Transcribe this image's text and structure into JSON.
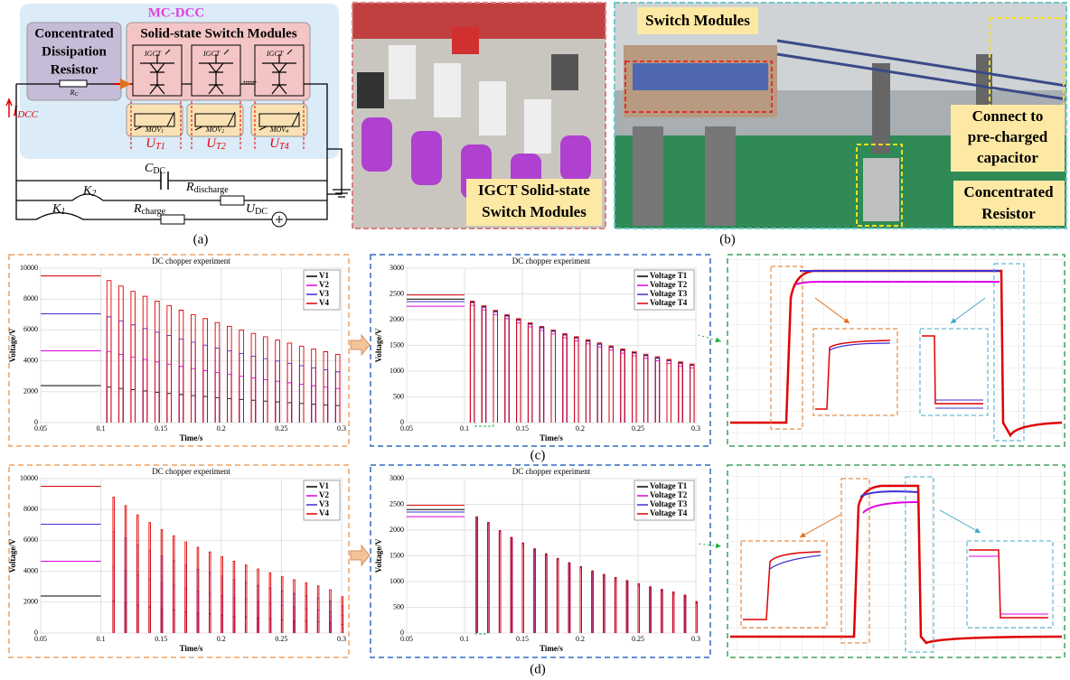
{
  "captions": [
    "(a)",
    "(b)",
    "(c)",
    "(d)"
  ],
  "panel_a": {
    "mc_dcc": "MC-DCC",
    "resistor_title": [
      "Concentrated",
      "Dissipation",
      "Resistor"
    ],
    "switch_title": "Solid-state Switch Modules",
    "igct": [
      "IGCT",
      "IGCT",
      "IGCT"
    ],
    "dots": "......",
    "rc": {
      "main": "R",
      "sub": "C"
    },
    "idcc": {
      "main": "I",
      "sub": "DCC"
    },
    "movs": [
      {
        "main": "MOV",
        "sub": "1"
      },
      {
        "main": "MOV",
        "sub": "2"
      },
      {
        "main": "MOV",
        "sub": "4"
      }
    ],
    "uts": [
      {
        "main": "U",
        "sub": "T1"
      },
      {
        "main": "U",
        "sub": "T2"
      },
      {
        "main": "U",
        "sub": "T4"
      }
    ],
    "cdc": {
      "main": "C",
      "sub": "DC"
    },
    "k2": {
      "main": "K",
      "sub": "2"
    },
    "rdis": {
      "main": "R",
      "sub": "discharge"
    },
    "k1": {
      "main": "K",
      "sub": "1"
    },
    "rch": {
      "main": "R",
      "sub": "charge"
    },
    "udc": {
      "main": "U",
      "sub": "DC"
    }
  },
  "panel_b": {
    "igct_label": [
      "IGCT Solid-state",
      "Switch Modules"
    ],
    "switch_modules": "Switch Modules",
    "connect": [
      "Connect to",
      "pre-charged",
      "capacitor"
    ],
    "resistor": [
      "Concentrated",
      "Resistor"
    ]
  },
  "chart_data": [
    {
      "type": "line",
      "title": "DC chopper experiment",
      "x_label": "Time/s",
      "y_label": "Voltage/V",
      "x": [
        0.05,
        0.1,
        0.105,
        0.115,
        0.125,
        0.135,
        0.145,
        0.155,
        0.165,
        0.175,
        0.185,
        0.195,
        0.205,
        0.215,
        0.225,
        0.235,
        0.245,
        0.255,
        0.265,
        0.275,
        0.285,
        0.295
      ],
      "xlim": [
        0.05,
        0.3
      ],
      "xticks": [
        0.05,
        0.1,
        0.15,
        0.2,
        0.25,
        0.3
      ],
      "ylim": [
        0,
        10000
      ],
      "yticks": [
        0,
        2000,
        4000,
        6000,
        8000,
        10000
      ],
      "grid": true,
      "legend": "upper right",
      "series": [
        {
          "name": "V1",
          "color": "#000000",
          "values": [
            2400,
            2400,
            2300,
            2210,
            2130,
            2050,
            1970,
            1890,
            1820,
            1750,
            1690,
            1620,
            1560,
            1500,
            1450,
            1390,
            1340,
            1290,
            1240,
            1190,
            1150,
            1110
          ]
        },
        {
          "name": "V2",
          "color": "#e000e0",
          "values": [
            4650,
            4650,
            4600,
            4420,
            4250,
            4090,
            3930,
            3780,
            3640,
            3500,
            3370,
            3240,
            3120,
            3000,
            2890,
            2780,
            2680,
            2580,
            2480,
            2390,
            2300,
            2210
          ]
        },
        {
          "name": "V3",
          "color": "#3f2fd0",
          "values": [
            7050,
            7050,
            6850,
            6590,
            6330,
            6090,
            5860,
            5640,
            5420,
            5210,
            5020,
            4830,
            4650,
            4470,
            4300,
            4140,
            3990,
            3840,
            3690,
            3550,
            3420,
            3290
          ]
        },
        {
          "name": "V4",
          "color": "#e00000",
          "values": [
            9500,
            9500,
            9200,
            8850,
            8500,
            8180,
            7870,
            7570,
            7280,
            7000,
            6740,
            6480,
            6240,
            6000,
            5780,
            5560,
            5350,
            5150,
            4950,
            4770,
            4590,
            4420
          ]
        }
      ]
    },
    {
      "type": "line",
      "title": "DC chopper experiment",
      "x_label": "Time/s",
      "y_label": "Voltage/V",
      "x": [
        0.05,
        0.1,
        0.105,
        0.115,
        0.125,
        0.135,
        0.145,
        0.155,
        0.165,
        0.175,
        0.185,
        0.195,
        0.205,
        0.215,
        0.225,
        0.235,
        0.245,
        0.255,
        0.265,
        0.275,
        0.285,
        0.295
      ],
      "xlim": [
        0.05,
        0.3
      ],
      "xticks": [
        0.05,
        0.1,
        0.15,
        0.2,
        0.25,
        0.3
      ],
      "ylim": [
        0,
        3000
      ],
      "yticks": [
        0,
        500,
        1000,
        1500,
        2000,
        2500,
        3000
      ],
      "grid": true,
      "legend": "upper right",
      "series": [
        {
          "name": "Voltage T1",
          "color": "#000000",
          "values": [
            2400,
            2400,
            2340,
            2250,
            2160,
            2080,
            2000,
            1920,
            1850,
            1780,
            1710,
            1650,
            1590,
            1530,
            1470,
            1410,
            1360,
            1310,
            1260,
            1210,
            1160,
            1120
          ]
        },
        {
          "name": "Voltage T2",
          "color": "#e000e0",
          "values": [
            2260,
            2260,
            2280,
            2190,
            2100,
            2020,
            1940,
            1860,
            1790,
            1720,
            1650,
            1590,
            1530,
            1470,
            1410,
            1350,
            1300,
            1250,
            1200,
            1150,
            1100,
            1060
          ]
        },
        {
          "name": "Voltage T3",
          "color": "#3f2fd0",
          "values": [
            2350,
            2350,
            2330,
            2240,
            2150,
            2070,
            1990,
            1910,
            1840,
            1770,
            1700,
            1640,
            1580,
            1520,
            1460,
            1400,
            1350,
            1300,
            1250,
            1200,
            1150,
            1110
          ]
        },
        {
          "name": "Voltage T4",
          "color": "#e00000",
          "values": [
            2480,
            2480,
            2360,
            2270,
            2180,
            2100,
            2020,
            1940,
            1870,
            1800,
            1730,
            1670,
            1610,
            1550,
            1490,
            1430,
            1380,
            1330,
            1280,
            1230,
            1180,
            1140
          ]
        }
      ]
    },
    {
      "type": "line",
      "title": "DC chopper experiment",
      "x_label": "Time/s",
      "y_label": "Voltage/V",
      "x": [
        0.05,
        0.1,
        0.11,
        0.12,
        0.13,
        0.14,
        0.15,
        0.16,
        0.17,
        0.18,
        0.19,
        0.2,
        0.21,
        0.22,
        0.23,
        0.24,
        0.25,
        0.26,
        0.27,
        0.28,
        0.29,
        0.3
      ],
      "xlim": [
        0.05,
        0.3
      ],
      "xticks": [
        0.05,
        0.1,
        0.15,
        0.2,
        0.25,
        0.3
      ],
      "ylim": [
        0,
        10000
      ],
      "yticks": [
        0,
        2000,
        4000,
        6000,
        8000,
        10000
      ],
      "grid": true,
      "legend": "upper right",
      "series": [
        {
          "name": "V1",
          "color": "#000000",
          "values": [
            2400,
            2400,
            2070,
            1940,
            1800,
            1680,
            1570,
            1480,
            1390,
            1300,
            1230,
            1160,
            1090,
            1030,
            980,
            920,
            860,
            810,
            760,
            720,
            660,
            550
          ]
        },
        {
          "name": "V2",
          "color": "#e000e0",
          "values": [
            4650,
            4650,
            4310,
            4040,
            3750,
            3500,
            3280,
            3090,
            2890,
            2720,
            2570,
            2430,
            2280,
            2160,
            2030,
            1910,
            1790,
            1690,
            1590,
            1490,
            1370,
            1150
          ]
        },
        {
          "name": "V3",
          "color": "#3f2fd0",
          "values": [
            7050,
            7050,
            6560,
            6150,
            5700,
            5330,
            4990,
            4690,
            4400,
            4130,
            3910,
            3690,
            3460,
            3280,
            3090,
            2910,
            2720,
            2570,
            2420,
            2270,
            2090,
            1750
          ]
        },
        {
          "name": "V4",
          "color": "#e00000",
          "values": [
            9500,
            9500,
            8800,
            8250,
            7650,
            7150,
            6700,
            6300,
            5900,
            5550,
            5250,
            4950,
            4650,
            4400,
            4150,
            3900,
            3650,
            3450,
            3250,
            3050,
            2800,
            2350
          ]
        }
      ]
    },
    {
      "type": "line",
      "title": "DC chopper experiment",
      "x_label": "Time/s",
      "y_label": "Voltage/V",
      "x": [
        0.05,
        0.1,
        0.11,
        0.12,
        0.13,
        0.14,
        0.15,
        0.16,
        0.17,
        0.18,
        0.19,
        0.2,
        0.21,
        0.22,
        0.23,
        0.24,
        0.25,
        0.26,
        0.27,
        0.28,
        0.29,
        0.3
      ],
      "xlim": [
        0.05,
        0.3
      ],
      "xticks": [
        0.05,
        0.1,
        0.15,
        0.2,
        0.25,
        0.3
      ],
      "ylim": [
        0,
        3000
      ],
      "yticks": [
        0,
        500,
        1000,
        1500,
        2000,
        2500,
        3000
      ],
      "grid": true,
      "legend": "upper right",
      "series": [
        {
          "name": "Voltage T1",
          "color": "#000000",
          "values": [
            2400,
            2400,
            2250,
            2140,
            1980,
            1850,
            1740,
            1630,
            1530,
            1440,
            1360,
            1280,
            1200,
            1130,
            1070,
            1010,
            950,
            890,
            840,
            790,
            730,
            600
          ]
        },
        {
          "name": "Voltage T2",
          "color": "#e000e0",
          "values": [
            2260,
            2260,
            2200,
            2090,
            1930,
            1800,
            1690,
            1580,
            1480,
            1390,
            1310,
            1230,
            1150,
            1080,
            1020,
            960,
            900,
            850,
            800,
            750,
            690,
            570
          ]
        },
        {
          "name": "Voltage T3",
          "color": "#3f2fd0",
          "values": [
            2350,
            2350,
            2240,
            2130,
            1970,
            1840,
            1730,
            1620,
            1520,
            1430,
            1350,
            1270,
            1190,
            1120,
            1060,
            1000,
            940,
            880,
            830,
            780,
            720,
            590
          ]
        },
        {
          "name": "Voltage T4",
          "color": "#e00000",
          "values": [
            2480,
            2480,
            2260,
            2150,
            1990,
            1860,
            1750,
            1640,
            1540,
            1450,
            1370,
            1290,
            1210,
            1140,
            1080,
            1020,
            960,
            900,
            850,
            800,
            740,
            610
          ]
        }
      ]
    }
  ]
}
